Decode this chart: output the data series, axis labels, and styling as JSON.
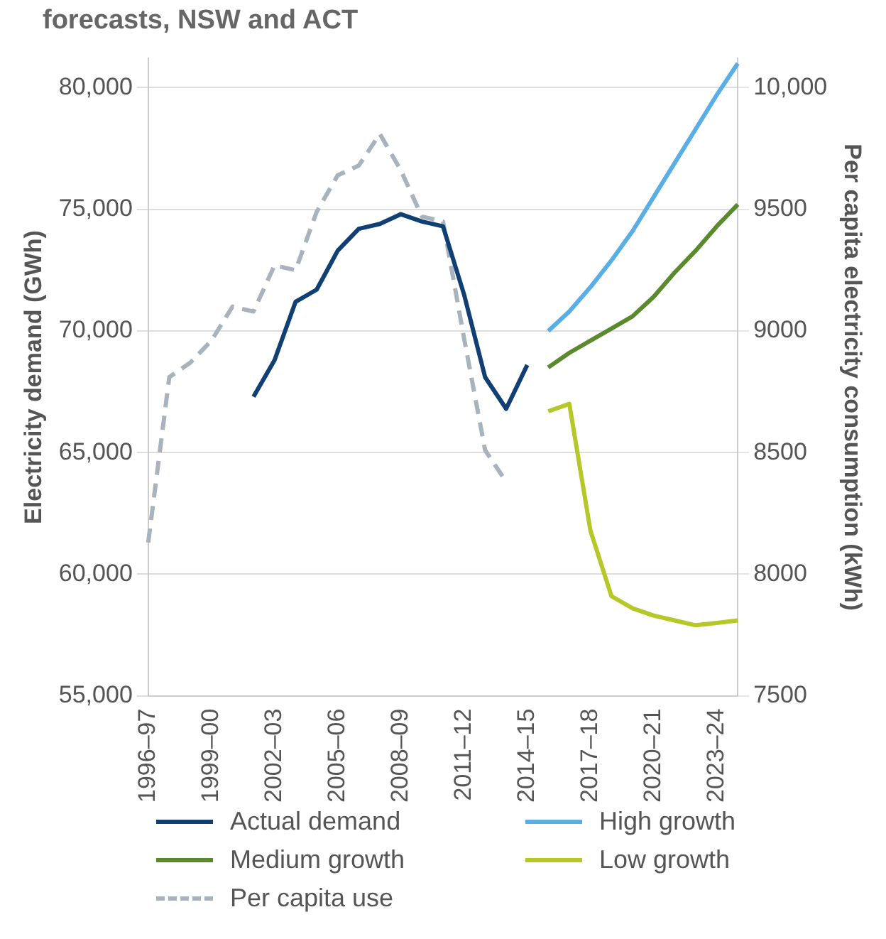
{
  "chart_data": {
    "type": "line",
    "title": "forecasts, NSW and ACT",
    "ylabel": "Electricity demand (GWh)",
    "y2label": "Per capita electricity consumption (kWh)",
    "categories": [
      "1996–97",
      null,
      null,
      "1999–00",
      null,
      null,
      "2002–03",
      null,
      null,
      "2005–06",
      null,
      null,
      "2008–09",
      null,
      null,
      "2011–12",
      null,
      null,
      "2014–15",
      null,
      null,
      "2017–18",
      null,
      null,
      "2020–21",
      null,
      null,
      "2023–24",
      null
    ],
    "series": [
      {
        "name": "Actual demand",
        "color": "#0f3f73",
        "line_style": "solid",
        "values": [
          null,
          null,
          null,
          null,
          null,
          67300,
          68800,
          71200,
          71700,
          73300,
          74200,
          74400,
          74800,
          74500,
          74300,
          71500,
          68100,
          66800,
          68600,
          null,
          null,
          null,
          null,
          null,
          null,
          null,
          null,
          null,
          null
        ]
      },
      {
        "name": "High growth",
        "color": "#5aaee6",
        "line_style": "solid",
        "values": [
          null,
          null,
          null,
          null,
          null,
          null,
          null,
          null,
          null,
          null,
          null,
          null,
          null,
          null,
          null,
          null,
          null,
          null,
          null,
          70000,
          70800,
          71800,
          72900,
          74100,
          75500,
          76900,
          78300,
          79700,
          81000
        ]
      },
      {
        "name": "Medium growth",
        "color": "#5b8a2e",
        "line_style": "solid",
        "values": [
          null,
          null,
          null,
          null,
          null,
          null,
          null,
          null,
          null,
          null,
          null,
          null,
          null,
          null,
          null,
          null,
          null,
          null,
          null,
          68500,
          69100,
          69600,
          70100,
          70600,
          71400,
          72400,
          73300,
          74300,
          75200
        ]
      },
      {
        "name": "Low growth",
        "color": "#b5c827",
        "line_style": "solid",
        "values": [
          null,
          null,
          null,
          null,
          null,
          null,
          null,
          null,
          null,
          null,
          null,
          null,
          null,
          null,
          null,
          null,
          null,
          null,
          null,
          66700,
          67000,
          61800,
          59100,
          58600,
          58300,
          58100,
          57900,
          58000,
          58100
        ]
      },
      {
        "name": "Per capita use",
        "color": "#a9b3bd",
        "line_style": "dashed",
        "axis": "y2",
        "values": [
          8130,
          8810,
          8870,
          8960,
          9100,
          9080,
          9270,
          9250,
          9490,
          9640,
          9680,
          9810,
          9660,
          9470,
          9450,
          8970,
          8510,
          8380,
          null,
          null,
          null,
          null,
          null,
          null,
          null,
          null,
          null,
          null,
          null
        ]
      }
    ],
    "ylim": [
      55000,
      81200
    ],
    "yticks": [
      {
        "value": 55000,
        "label": "55,000"
      },
      {
        "value": 60000,
        "label": "60,000"
      },
      {
        "value": 65000,
        "label": "65,000"
      },
      {
        "value": 70000,
        "label": "70,000"
      },
      {
        "value": 75000,
        "label": "75,000"
      },
      {
        "value": 80000,
        "label": "80,000"
      }
    ],
    "y2lim": [
      7500,
      10120
    ],
    "y2ticks": [
      7500,
      8000,
      8500,
      9000,
      9500,
      {
        "value": 10000,
        "label": "10,000"
      }
    ],
    "grid": "y",
    "legend": "bottom",
    "marker": "none"
  }
}
